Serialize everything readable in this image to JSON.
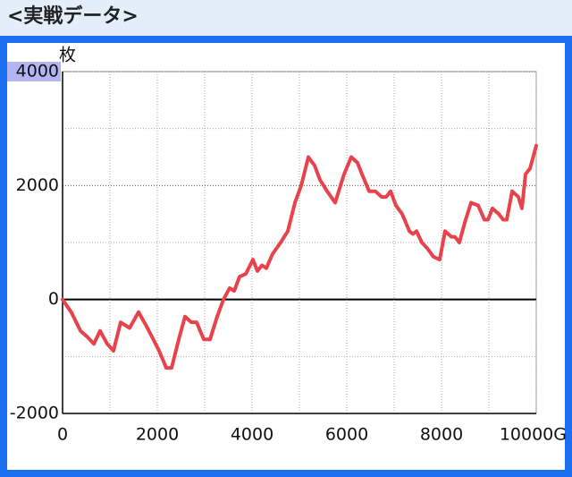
{
  "header": {
    "title": "<実戦データ>"
  },
  "chart_data": {
    "type": "line",
    "ylabel": "枚",
    "x": [
      0,
      189,
      377,
      528,
      660,
      792,
      943,
      1075,
      1226,
      1415,
      1604,
      1792,
      2038,
      2189,
      2302,
      2453,
      2585,
      2717,
      2830,
      2981,
      3113,
      3264,
      3396,
      3528,
      3623,
      3736,
      3868,
      4019,
      4113,
      4208,
      4302,
      4434,
      4604,
      4755,
      4906,
      5038,
      5189,
      5321,
      5434,
      5585,
      5755,
      5943,
      6094,
      6226,
      6321,
      6472,
      6604,
      6736,
      6830,
      6925,
      7038,
      7170,
      7321,
      7396,
      7472,
      7585,
      7698,
      7830,
      7962,
      8075,
      8208,
      8283,
      8377,
      8491,
      8623,
      8774,
      8906,
      8981,
      9075,
      9208,
      9302,
      9377,
      9491,
      9623,
      9698,
      9774,
      9868,
      10000
    ],
    "series": [
      {
        "color": "#e8434b",
        "values": [
          0,
          -230,
          -550,
          -660,
          -780,
          -550,
          -780,
          -900,
          -400,
          -500,
          -220,
          -500,
          -900,
          -1200,
          -1200,
          -700,
          -300,
          -400,
          -400,
          -700,
          -700,
          -300,
          0,
          200,
          150,
          400,
          450,
          700,
          500,
          600,
          550,
          800,
          1000,
          1200,
          1700,
          2000,
          2500,
          2350,
          2100,
          1900,
          1700,
          2200,
          2500,
          2400,
          2200,
          1900,
          1900,
          1800,
          1800,
          1900,
          1650,
          1500,
          1200,
          1150,
          1200,
          1000,
          900,
          750,
          700,
          1200,
          1100,
          1100,
          1000,
          1350,
          1700,
          1650,
          1400,
          1400,
          1600,
          1500,
          1400,
          1400,
          1900,
          1800,
          1600,
          2200,
          2300,
          2700
        ]
      }
    ],
    "xlim": [
      0,
      10000
    ],
    "xticks": [
      0,
      2000,
      4000,
      6000,
      8000,
      {
        "value": 10000,
        "label": "10000G"
      }
    ],
    "ylim": [
      -2000,
      4000
    ],
    "yticks": [
      -2000,
      0,
      2000,
      4000
    ],
    "grid": true
  }
}
